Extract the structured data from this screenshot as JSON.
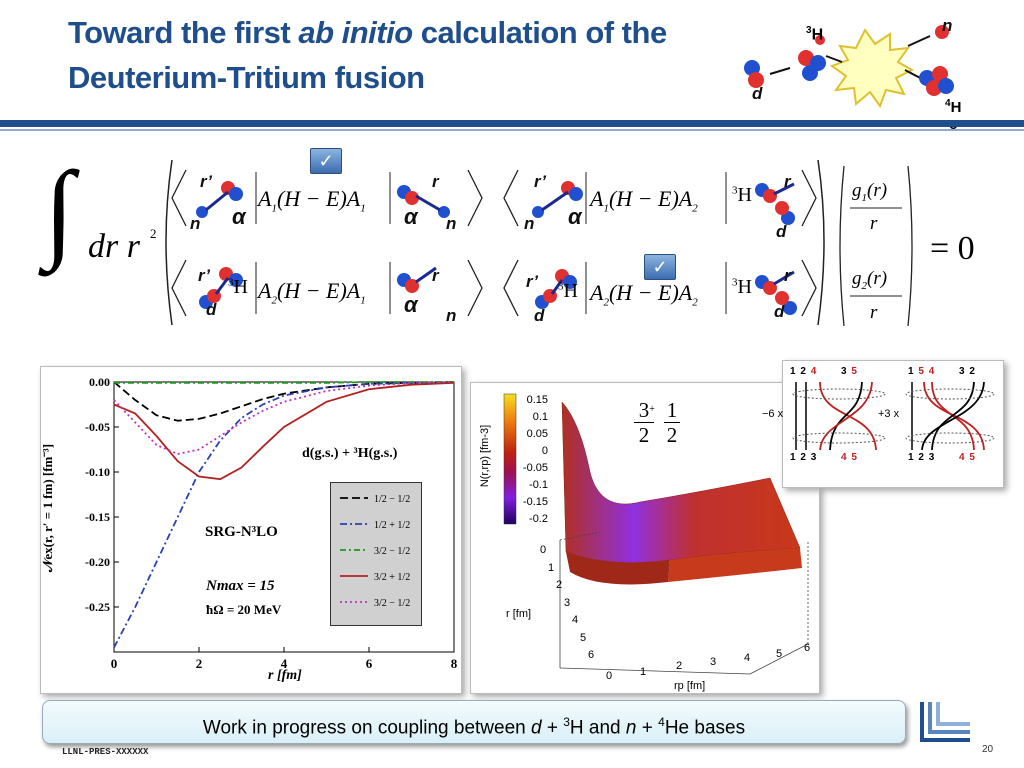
{
  "title": {
    "part1": "Toward the first ",
    "italic": "ab initio",
    "part2": " calculation of the",
    "line2": "Deuterium-Tritium fusion"
  },
  "reaction": {
    "h3_mass": "3",
    "h3_sym": "H",
    "n": "n",
    "d": "d",
    "he4_mass": "4",
    "he4_line1": "H",
    "he4_line2": "e"
  },
  "equation": {
    "integral": "∫",
    "dr": "dr r",
    "exp2": "2",
    "equals": "= 0",
    "r_prime": "r’",
    "r": "r",
    "alpha": "α",
    "n": "n",
    "d": "d",
    "h3_mass": "3",
    "h3_sym": "H",
    "op11": "(H − E)",
    "check_mark": "✓",
    "g1_num": "g",
    "g1_sub": "1",
    "g1_arg": "(r)",
    "g2_num": "g",
    "g2_sub": "2",
    "g2_arg": "(r)",
    "den": "r",
    "A": "A",
    "sub1": "1",
    "sub2": "2"
  },
  "chart_data": {
    "type": "line",
    "xlabel": "r [fm]",
    "ylabel": "𝒩ex(r, r′ = 1 fm) [fm⁻³]",
    "xlim": [
      0,
      8
    ],
    "ylim": [
      -0.3,
      0.0
    ],
    "xticks": [
      "0",
      "2",
      "4",
      "6",
      "8"
    ],
    "yticks": [
      "0.00",
      "-0.05",
      "-0.10",
      "-0.15",
      "-0.20",
      "-0.25"
    ],
    "annotation_channel": "d(g.s.) + ³H(g.s.)",
    "annotation_method": "SRG-N³LO",
    "annotation_nmax": "Nmax = 15",
    "annotation_hw": "ħΩ = 20 MeV",
    "x": [
      0,
      0.5,
      1,
      1.5,
      2,
      2.5,
      3,
      3.5,
      4,
      5,
      6,
      7,
      8
    ],
    "series": [
      {
        "name": "1/2 − 1/2",
        "color": "#000000",
        "dash": "8,4",
        "values": [
          0,
          -0.02,
          -0.037,
          -0.043,
          -0.041,
          -0.035,
          -0.027,
          -0.019,
          -0.013,
          -0.006,
          -0.002,
          -0.001,
          0
        ]
      },
      {
        "name": "1/2 + 1/2",
        "color": "#2b3fb0",
        "dash": "7,3,2,3",
        "values": [
          -0.295,
          -0.25,
          -0.2,
          -0.15,
          -0.1,
          -0.065,
          -0.04,
          -0.025,
          -0.015,
          -0.006,
          -0.002,
          -0.001,
          0
        ]
      },
      {
        "name": "3/2 − 1/2",
        "color": "#1a9a1a",
        "dash": "6,3,2,3",
        "values": [
          -0.001,
          -0.001,
          -0.001,
          -0.001,
          -0.001,
          -0.001,
          -0.001,
          -0.001,
          -0.001,
          -0.001,
          0,
          0,
          0
        ]
      },
      {
        "name": "3/2 + 1/2",
        "color": "#b22222",
        "dash": "",
        "values": [
          -0.025,
          -0.035,
          -0.06,
          -0.088,
          -0.105,
          -0.108,
          -0.095,
          -0.072,
          -0.05,
          -0.022,
          -0.008,
          -0.003,
          -0.001
        ]
      },
      {
        "name": "3/2 − 1/2",
        "color": "#c030c0",
        "dash": "2,3",
        "values": [
          -0.02,
          -0.045,
          -0.07,
          -0.08,
          -0.075,
          -0.06,
          -0.045,
          -0.032,
          -0.022,
          -0.01,
          -0.004,
          -0.001,
          0
        ]
      }
    ]
  },
  "surface": {
    "colorbar_label": "N(r,rp) [fm-3]",
    "colorbar_ticks": [
      "0.15",
      "0.1",
      "0.05",
      "0",
      "-0.05",
      "-0.1",
      "-0.15",
      "-0.2"
    ],
    "r_axis_label": "r [fm]",
    "rp_axis_label": "rp [fm]",
    "r_ticks": [
      "0",
      "1",
      "2",
      "3",
      "4",
      "5",
      "6"
    ],
    "rp_ticks": [
      "0",
      "1",
      "2",
      "3",
      "4",
      "5",
      "6"
    ],
    "j_num": "3",
    "j_sup": "+",
    "j_den": "2",
    "t_num": "1",
    "t_den": "2"
  },
  "diagrams": {
    "left_top": [
      "1",
      "2",
      "4",
      "3",
      "5"
    ],
    "left_bottom": [
      "1",
      "2",
      "3",
      "4",
      "5"
    ],
    "left_factor": "−6 x",
    "right_top": [
      "1",
      "5",
      "4",
      "3",
      "2"
    ],
    "right_bottom": [
      "1",
      "2",
      "3",
      "4",
      "5"
    ],
    "right_factor": "+3 x"
  },
  "banner": {
    "pre": "Work in progress on coupling between ",
    "d": "d",
    "plus1": " + ",
    "h3_mass": "3",
    "h3_rest": "H and ",
    "n": "n",
    "plus2": " + ",
    "he4_mass": "4",
    "he4_rest": "He  bases"
  },
  "footer": {
    "code": "LLNL-PRES-XXXXXX",
    "page": "20"
  },
  "colors": {
    "brand": "#1f4e8c",
    "proton": "#e03030",
    "neutron": "#2050d0"
  }
}
